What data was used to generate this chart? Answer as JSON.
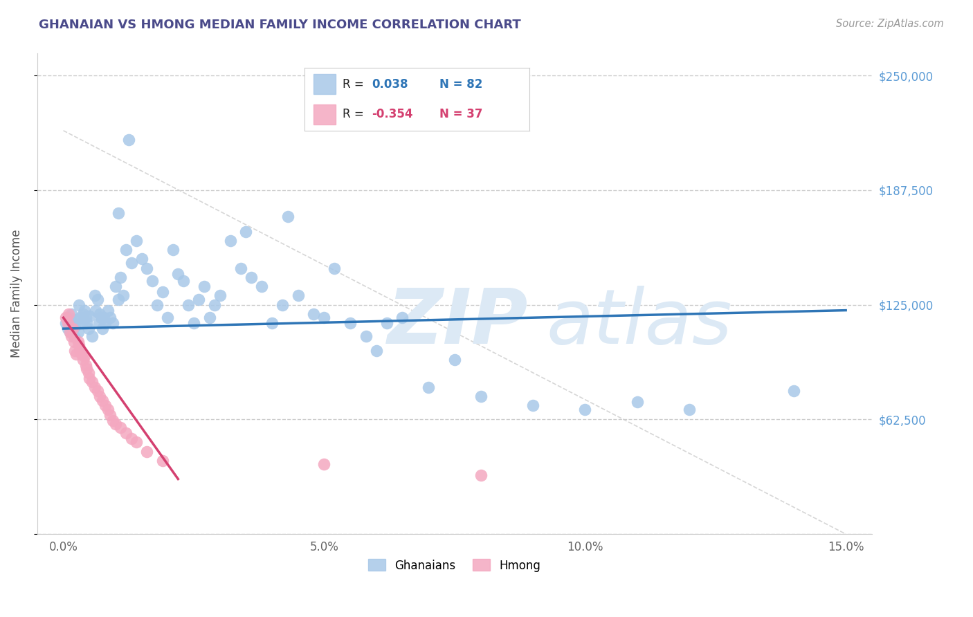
{
  "title": "GHANAIAN VS HMONG MEDIAN FAMILY INCOME CORRELATION CHART",
  "source": "Source: ZipAtlas.com",
  "ylabel": "Median Family Income",
  "xlabel_ticks": [
    "0.0%",
    "5.0%",
    "10.0%",
    "15.0%"
  ],
  "xlabel_vals": [
    0.0,
    5.0,
    10.0,
    15.0
  ],
  "yticks": [
    0,
    62500,
    125000,
    187500,
    250000
  ],
  "ytick_labels": [
    "",
    "$62,500",
    "$125,000",
    "$187,500",
    "$250,000"
  ],
  "xlim": [
    -0.5,
    15.5
  ],
  "ylim": [
    0,
    262000
  ],
  "title_color": "#4a4a8a",
  "title_fontsize": 13,
  "source_color": "#999999",
  "axis_label_color": "#555555",
  "ytick_color": "#5b9bd5",
  "xtick_color": "#666666",
  "grid_color": "#cccccc",
  "watermark_text": "ZIPatlas",
  "watermark_color": "#dce9f5",
  "blue_color": "#a8c8e8",
  "pink_color": "#f4a8c0",
  "blue_trend_color": "#2e75b6",
  "pink_trend_color": "#d44070",
  "legend_R1": "R =  0.038",
  "legend_N1": "N = 82",
  "legend_R2": "R = -0.354",
  "legend_N2": "N = 37",
  "blue_label": "Ghanaians",
  "pink_label": "Hmong",
  "ghanaian_x": [
    0.05,
    0.08,
    0.1,
    0.12,
    0.15,
    0.18,
    0.2,
    0.22,
    0.25,
    0.28,
    0.3,
    0.33,
    0.35,
    0.38,
    0.4,
    0.43,
    0.45,
    0.48,
    0.5,
    0.55,
    0.6,
    0.62,
    0.65,
    0.68,
    0.7,
    0.72,
    0.75,
    0.78,
    0.8,
    0.85,
    0.9,
    0.95,
    1.0,
    1.05,
    1.1,
    1.15,
    1.2,
    1.3,
    1.4,
    1.5,
    1.6,
    1.7,
    1.8,
    1.9,
    2.0,
    2.1,
    2.2,
    2.3,
    2.4,
    2.5,
    2.6,
    2.7,
    2.8,
    2.9,
    3.0,
    3.2,
    3.4,
    3.6,
    3.8,
    4.0,
    4.2,
    4.5,
    4.8,
    5.0,
    5.2,
    5.5,
    5.8,
    6.0,
    6.2,
    6.5,
    7.0,
    7.5,
    8.0,
    9.0,
    10.0,
    11.0,
    12.0,
    14.0,
    3.5,
    4.3,
    1.05,
    1.25
  ],
  "ghanaian_y": [
    115000,
    112000,
    118000,
    110000,
    120000,
    115000,
    108000,
    113000,
    117000,
    110000,
    125000,
    118000,
    115000,
    120000,
    122000,
    118000,
    115000,
    112000,
    119000,
    108000,
    130000,
    122000,
    128000,
    115000,
    120000,
    118000,
    112000,
    118000,
    115000,
    122000,
    118000,
    115000,
    135000,
    128000,
    140000,
    130000,
    155000,
    148000,
    160000,
    150000,
    145000,
    138000,
    125000,
    132000,
    118000,
    155000,
    142000,
    138000,
    125000,
    115000,
    128000,
    135000,
    118000,
    125000,
    130000,
    160000,
    145000,
    140000,
    135000,
    115000,
    125000,
    130000,
    120000,
    118000,
    145000,
    115000,
    108000,
    100000,
    115000,
    118000,
    80000,
    95000,
    75000,
    70000,
    68000,
    72000,
    68000,
    78000,
    165000,
    173000,
    175000,
    215000
  ],
  "hmong_x": [
    0.05,
    0.08,
    0.1,
    0.12,
    0.15,
    0.18,
    0.2,
    0.22,
    0.25,
    0.28,
    0.3,
    0.33,
    0.35,
    0.38,
    0.4,
    0.43,
    0.45,
    0.48,
    0.5,
    0.55,
    0.6,
    0.65,
    0.7,
    0.75,
    0.8,
    0.85,
    0.9,
    0.95,
    1.0,
    1.1,
    1.2,
    1.3,
    1.4,
    1.6,
    1.9,
    5.0,
    8.0
  ],
  "hmong_y": [
    118000,
    115000,
    120000,
    110000,
    108000,
    112000,
    105000,
    100000,
    98000,
    105000,
    103000,
    100000,
    98000,
    95000,
    97000,
    92000,
    90000,
    88000,
    85000,
    83000,
    80000,
    78000,
    75000,
    73000,
    70000,
    68000,
    65000,
    62000,
    60000,
    58000,
    55000,
    52000,
    50000,
    45000,
    40000,
    38000,
    32000
  ],
  "ref_line_x": [
    0,
    15
  ],
  "ref_line_y": [
    220000,
    0
  ]
}
